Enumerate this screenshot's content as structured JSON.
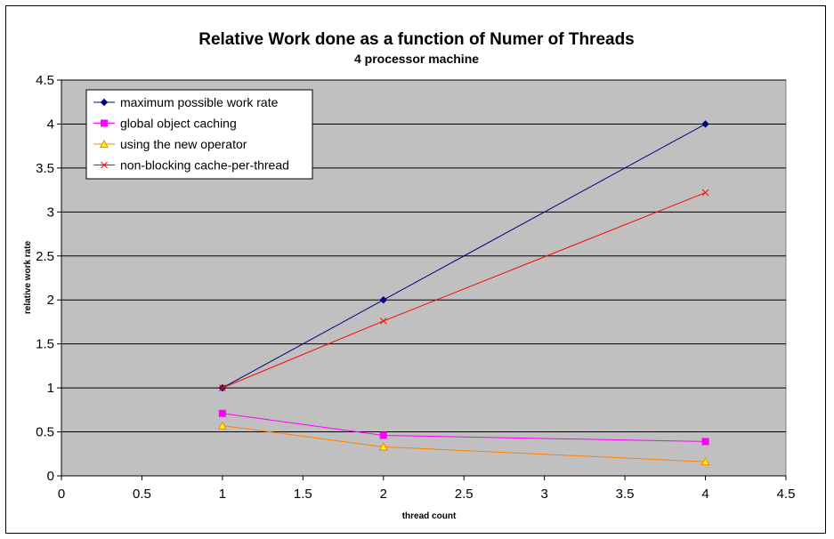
{
  "chart_data": {
    "type": "line",
    "title": "Relative Work done as a function of Numer of Threads",
    "subtitle": "4 processor machine",
    "xlabel": "thread count",
    "ylabel": "relative work rate",
    "xlim": [
      0,
      4.5
    ],
    "ylim": [
      0,
      4.5
    ],
    "xticks": [
      "0",
      "0.5",
      "1",
      "1.5",
      "2",
      "2.5",
      "3",
      "3.5",
      "4",
      "4.5"
    ],
    "yticks": [
      "0",
      "0.5",
      "1",
      "1.5",
      "2",
      "2.5",
      "3",
      "3.5",
      "4",
      "4.5"
    ],
    "grid": "horizontal",
    "legend_position": "top-left",
    "plot_background": "#c0c0c0",
    "series": [
      {
        "name": "maximum possible work rate",
        "color": "#000080",
        "marker": "diamond",
        "x": [
          1,
          2,
          4
        ],
        "values": [
          1,
          2,
          4
        ]
      },
      {
        "name": "global object caching",
        "color": "#ff00ff",
        "marker": "square",
        "x": [
          1,
          2,
          4
        ],
        "values": [
          0.71,
          0.46,
          0.39
        ]
      },
      {
        "name": "using the new operator",
        "color": "#ff8000",
        "marker": "triangle",
        "x": [
          1,
          2,
          4
        ],
        "values": [
          0.57,
          0.33,
          0.16
        ]
      },
      {
        "name": "non-blocking cache-per-thread",
        "color": "#ff0000",
        "marker": "x",
        "x": [
          1,
          2,
          4
        ],
        "values": [
          1,
          1.76,
          3.22
        ]
      }
    ]
  }
}
